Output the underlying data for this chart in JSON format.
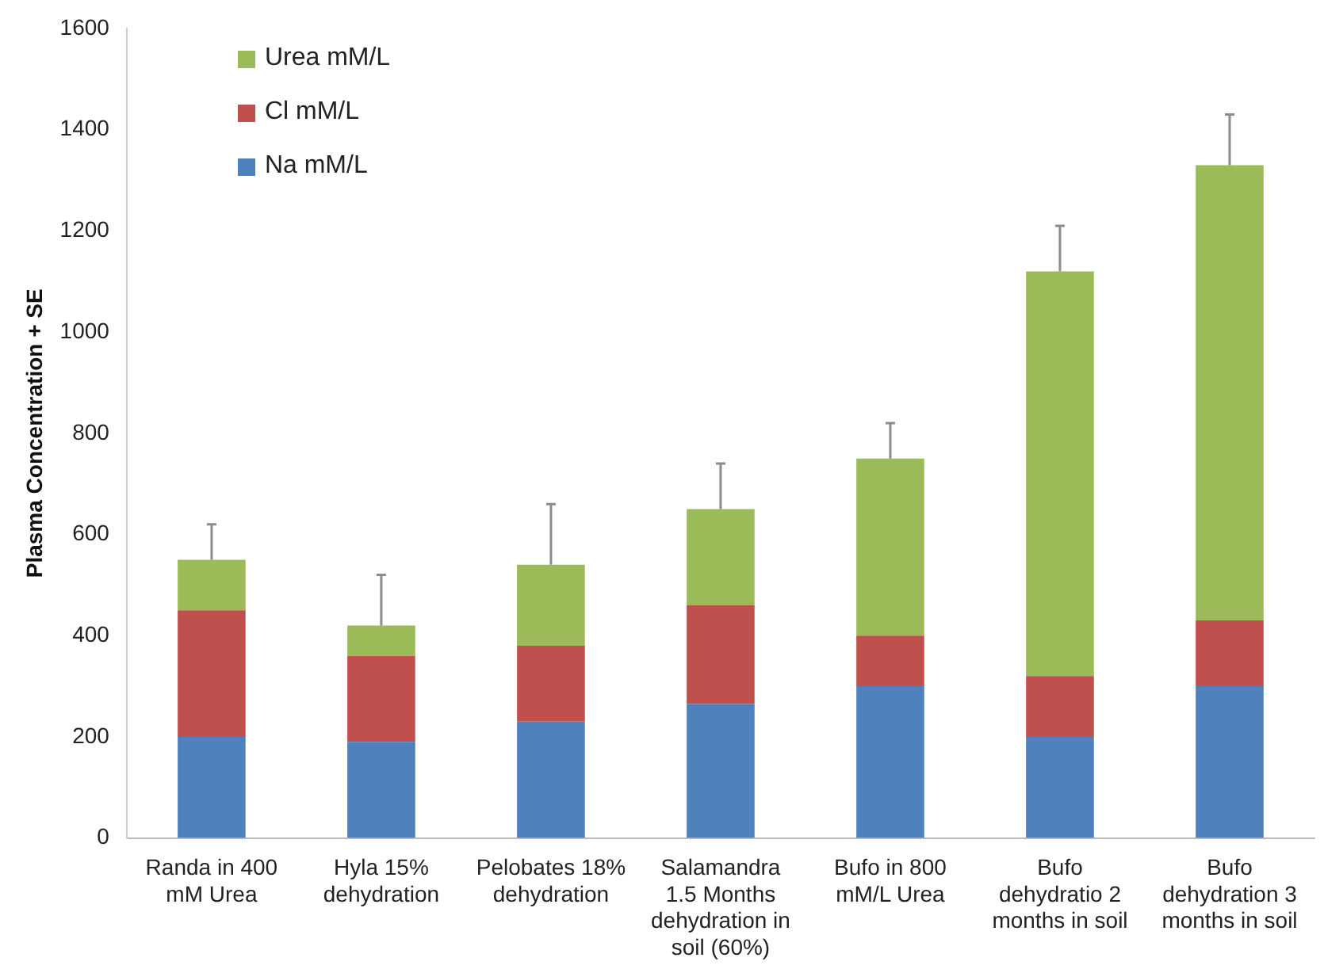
{
  "chart_data": {
    "type": "bar",
    "stacked": true,
    "ylabel": "Plasma Concentration + SE",
    "categories": [
      "Randa in 400 mM Urea",
      "Hyla 15% dehydration",
      "Pelobates 18% dehydration",
      "Salamandra 1.5 Months dehydration in soil (60%)",
      "Bufo in 800 mM/L Urea",
      "Bufo dehydratio 2 months in soil",
      "Bufo dehydration 3 months in soil"
    ],
    "series": [
      {
        "name": "Na mM/L",
        "color": "#4f81bd",
        "values": [
          200,
          190,
          230,
          265,
          300,
          200,
          300
        ]
      },
      {
        "name": "Cl mM/L",
        "color": "#c0504d",
        "values": [
          250,
          170,
          150,
          195,
          100,
          120,
          130
        ]
      },
      {
        "name": "Urea mM/L",
        "color": "#9bbb59",
        "values": [
          100,
          60,
          160,
          190,
          350,
          800,
          900
        ],
        "errors": [
          [
            550,
            620
          ],
          [
            420,
            520
          ],
          [
            540,
            660
          ],
          [
            650,
            740
          ],
          [
            750,
            820
          ],
          [
            1120,
            1210
          ],
          [
            1330,
            1430
          ]
        ]
      }
    ],
    "ylim": [
      0,
      1600
    ],
    "yticks": [
      0,
      200,
      400,
      600,
      800,
      1000,
      1200,
      1400,
      1600
    ],
    "grid": false,
    "legend": "top left"
  }
}
